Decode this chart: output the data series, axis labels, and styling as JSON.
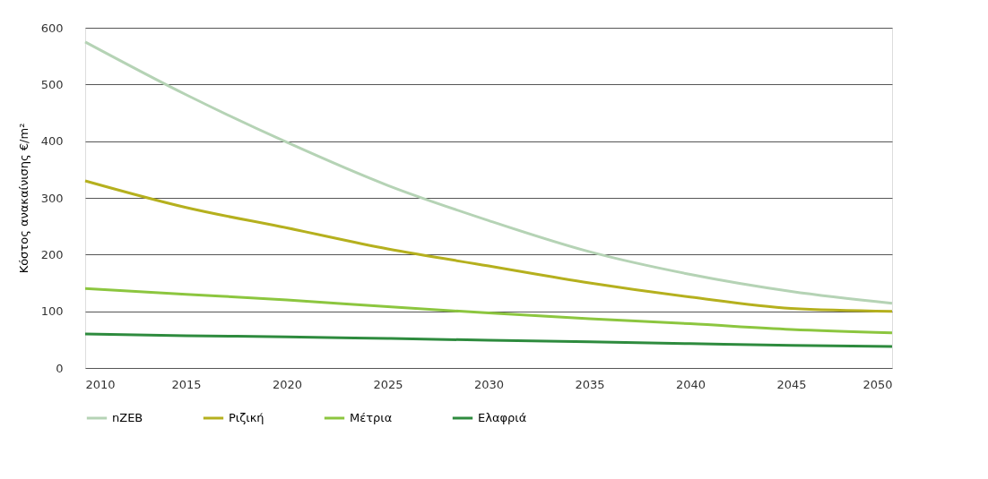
{
  "chart_data": {
    "type": "line",
    "ylabel": "Κόστος ανακαίνισης   €/m²",
    "x": [
      2010,
      2015,
      2020,
      2025,
      2030,
      2035,
      2040,
      2045,
      2050
    ],
    "xlim": [
      2010,
      2050
    ],
    "xticks": [
      2010,
      2015,
      2020,
      2025,
      2030,
      2035,
      2040,
      2045,
      2050
    ],
    "ylim": [
      0,
      600
    ],
    "yticks": [
      0,
      100,
      200,
      300,
      400,
      500,
      600
    ],
    "grid": "y",
    "legend": "bottom",
    "marker": "none",
    "line_style": "solid",
    "series": [
      {
        "name": "nZEB",
        "color": "#b5d3b5",
        "values": [
          575,
          482,
          398,
          322,
          260,
          205,
          165,
          135,
          114
        ]
      },
      {
        "name": "Ριζική",
        "color": "#b5b01e",
        "values": [
          330,
          283,
          247,
          210,
          180,
          150,
          125,
          105,
          100
        ]
      },
      {
        "name": "Μέτρια",
        "color": "#8cc63f",
        "values": [
          140,
          130,
          120,
          108,
          97,
          87,
          78,
          68,
          62
        ]
      },
      {
        "name": "Ελαφριά",
        "color": "#2e8b3e",
        "values": [
          60,
          57,
          55,
          52,
          49,
          46,
          43,
          40,
          38
        ]
      }
    ]
  }
}
